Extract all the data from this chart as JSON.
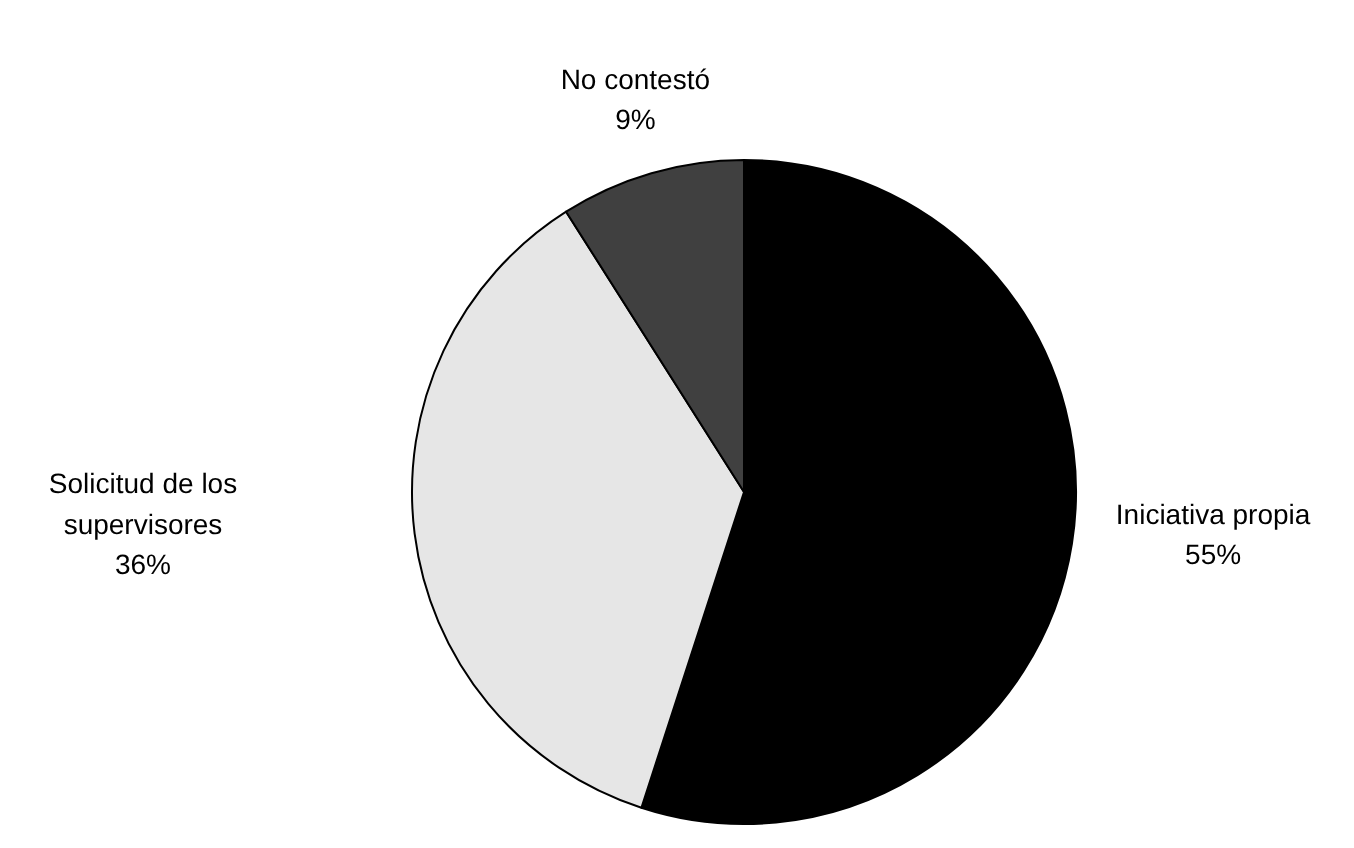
{
  "chart_data": {
    "type": "pie",
    "categories": [
      "Iniciativa propia",
      "Solicitud de los supervisores",
      "No contestó"
    ],
    "values": [
      55,
      36,
      9
    ],
    "value_labels": [
      "55%",
      "36%",
      "9%"
    ],
    "colors": [
      "#000000",
      "#e6e6e6",
      "#404040"
    ]
  }
}
